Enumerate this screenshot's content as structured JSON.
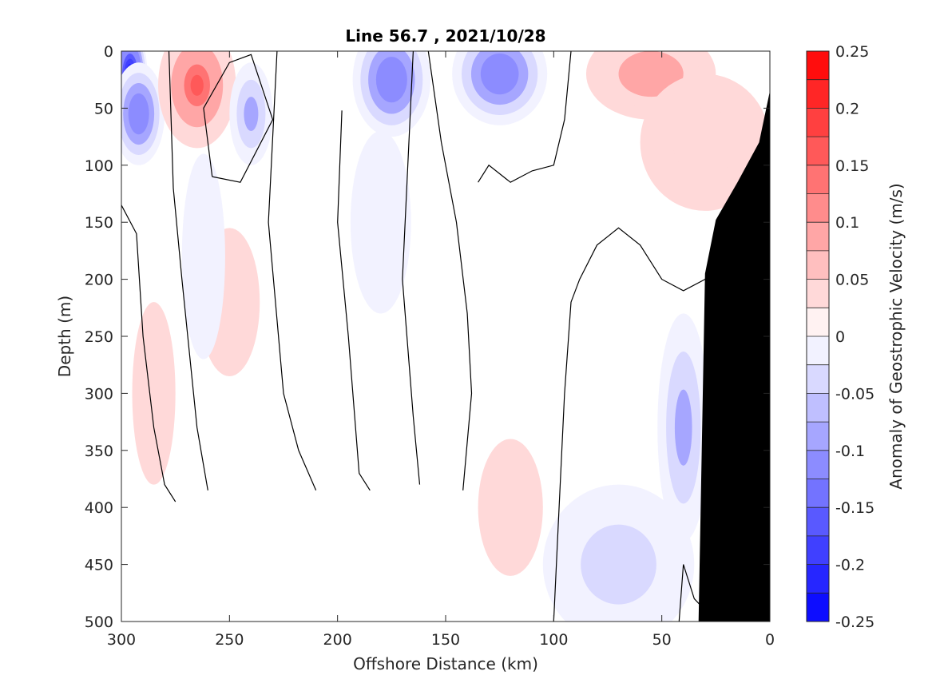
{
  "chart_data": {
    "type": "heatmap",
    "title": "Line 56.7 , 2021/10/28",
    "xlabel": "Offshore Distance (km)",
    "ylabel": "Depth (m)",
    "colorbar_label": "Anomaly of Geostrophic Velocity (m/s)",
    "x_reversed": true,
    "y_reversed": true,
    "xlim": [
      0,
      300
    ],
    "ylim": [
      0,
      500
    ],
    "x_ticks": [
      "300",
      "250",
      "200",
      "150",
      "100",
      "50",
      "0"
    ],
    "y_ticks": [
      "0",
      "50",
      "100",
      "150",
      "200",
      "250",
      "300",
      "350",
      "400",
      "450",
      "500"
    ],
    "colorbar_ticks": [
      "0.25",
      "0.2",
      "0.15",
      "0.1",
      "0.05",
      "0",
      "-0.05",
      "-0.1",
      "-0.15",
      "-0.2",
      "-0.25"
    ],
    "colorbar_range": [
      -0.25,
      0.25
    ],
    "colorbar_levels": 20,
    "colormap_colors": {
      "negative": "#0000ff",
      "zero": "#ffffff",
      "positive": "#ff0000",
      "bathymetry": "#000000",
      "contour": "#000000"
    },
    "anomaly_features": [
      {
        "x": 296,
        "y": 20,
        "rx": 8,
        "ry": 40,
        "value": -0.22
      },
      {
        "x": 292,
        "y": 55,
        "rx": 12,
        "ry": 45,
        "value": -0.12
      },
      {
        "x": 265,
        "y": 30,
        "rx": 18,
        "ry": 55,
        "value": 0.14
      },
      {
        "x": 240,
        "y": 55,
        "rx": 10,
        "ry": 45,
        "value": -0.08
      },
      {
        "x": 175,
        "y": 25,
        "rx": 18,
        "ry": 50,
        "value": -0.12
      },
      {
        "x": 180,
        "y": 150,
        "rx": 14,
        "ry": 80,
        "value": -0.03
      },
      {
        "x": 125,
        "y": 20,
        "rx": 22,
        "ry": 45,
        "value": -0.12
      },
      {
        "x": 55,
        "y": 20,
        "rx": 30,
        "ry": 40,
        "value": 0.1
      },
      {
        "x": 30,
        "y": 80,
        "rx": 30,
        "ry": 60,
        "value": 0.06
      },
      {
        "x": 250,
        "y": 220,
        "rx": 14,
        "ry": 65,
        "value": 0.03
      },
      {
        "x": 285,
        "y": 300,
        "rx": 10,
        "ry": 80,
        "value": 0.02
      },
      {
        "x": 120,
        "y": 400,
        "rx": 15,
        "ry": 60,
        "value": 0.03
      },
      {
        "x": 40,
        "y": 330,
        "rx": 12,
        "ry": 100,
        "value": -0.08
      },
      {
        "x": 70,
        "y": 450,
        "rx": 35,
        "ry": 70,
        "value": -0.04
      },
      {
        "x": 262,
        "y": 180,
        "rx": 10,
        "ry": 90,
        "value": -0.03
      }
    ],
    "bathymetry_profile": [
      [
        0,
        35
      ],
      [
        5,
        80
      ],
      [
        15,
        115
      ],
      [
        25,
        148
      ],
      [
        30,
        195
      ],
      [
        33,
        500
      ]
    ],
    "zero_contours": [
      [
        [
          300,
          135
        ],
        [
          293,
          160
        ],
        [
          290,
          250
        ],
        [
          285,
          330
        ],
        [
          280,
          380
        ],
        [
          275,
          395
        ]
      ],
      [
        [
          278,
          0
        ],
        [
          276,
          120
        ],
        [
          272,
          200
        ],
        [
          265,
          330
        ],
        [
          260,
          385
        ]
      ],
      [
        [
          258,
          110
        ],
        [
          262,
          50
        ],
        [
          250,
          10
        ],
        [
          240,
          3
        ],
        [
          230,
          60
        ],
        [
          245,
          115
        ],
        [
          258,
          110
        ]
      ],
      [
        [
          228,
          0
        ],
        [
          232,
          150
        ],
        [
          225,
          300
        ],
        [
          218,
          350
        ],
        [
          210,
          385
        ]
      ],
      [
        [
          198,
          52
        ],
        [
          200,
          150
        ],
        [
          195,
          250
        ],
        [
          190,
          370
        ],
        [
          185,
          385
        ]
      ],
      [
        [
          165,
          0
        ],
        [
          170,
          200
        ],
        [
          165,
          320
        ],
        [
          162,
          380
        ]
      ],
      [
        [
          158,
          0
        ],
        [
          152,
          80
        ],
        [
          145,
          150
        ],
        [
          140,
          230
        ],
        [
          138,
          300
        ],
        [
          142,
          385
        ]
      ],
      [
        [
          100,
          500
        ],
        [
          98,
          420
        ],
        [
          95,
          300
        ],
        [
          92,
          220
        ],
        [
          88,
          200
        ],
        [
          80,
          170
        ],
        [
          70,
          155
        ],
        [
          60,
          170
        ],
        [
          50,
          200
        ],
        [
          40,
          210
        ],
        [
          30,
          200
        ],
        [
          20,
          180
        ],
        [
          15,
          140
        ],
        [
          10,
          110
        ],
        [
          5,
          95
        ]
      ],
      [
        [
          135,
          115
        ],
        [
          130,
          100
        ],
        [
          120,
          115
        ],
        [
          110,
          105
        ],
        [
          100,
          100
        ],
        [
          95,
          60
        ],
        [
          92,
          0
        ]
      ],
      [
        [
          30,
          490
        ],
        [
          35,
          480
        ],
        [
          40,
          450
        ],
        [
          42,
          500
        ]
      ]
    ]
  }
}
